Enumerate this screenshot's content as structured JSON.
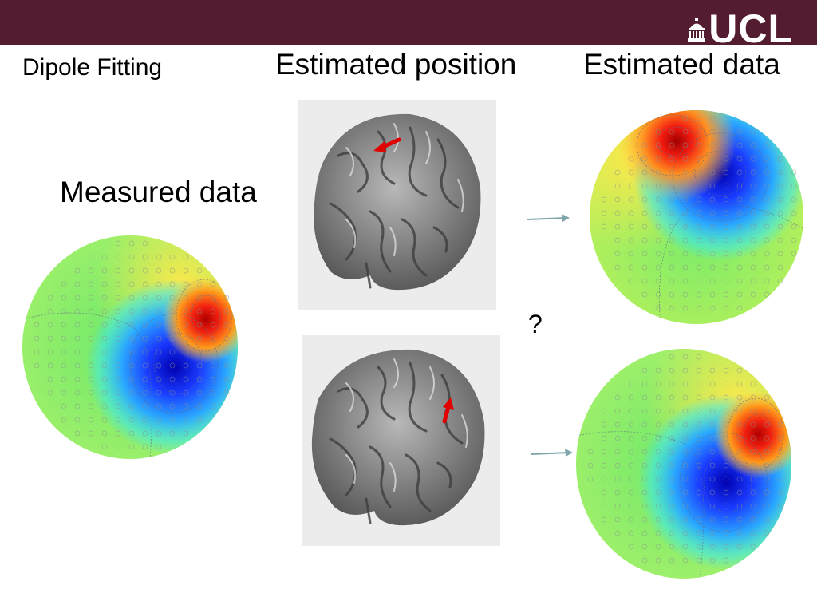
{
  "slide": {
    "title": "Dipole Fitting",
    "heading_position": "Estimated position",
    "heading_estimated": "Estimated data",
    "heading_measured": "Measured data",
    "question": "?",
    "logo_text": "UCL"
  },
  "colors": {
    "banner": "#541c30",
    "arrow": "#7fa6ad",
    "dipole_arrow": "#e00000"
  },
  "images": [
    {
      "name": "measured-field-map",
      "content": "MEG field topography, red positive pole and blue negative pole"
    },
    {
      "name": "brain-render-top",
      "content": "3D rendered cortex with red dipole arrow"
    },
    {
      "name": "brain-render-bottom",
      "content": "3D rendered cortex with red dipole arrow"
    },
    {
      "name": "estimated-field-map-top",
      "content": "MEG field topography"
    },
    {
      "name": "estimated-field-map-bottom",
      "content": "MEG field topography"
    }
  ]
}
